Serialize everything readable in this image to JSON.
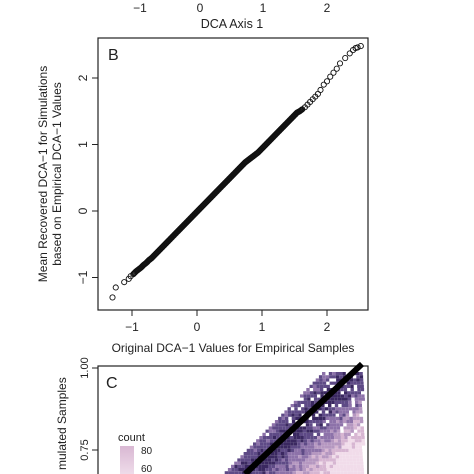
{
  "top_strip": {
    "tick_labels": [
      "−1",
      "0",
      "1",
      "2"
    ],
    "xlabel": "DCA Axis 1"
  },
  "panel_b": {
    "letter": "B"
  },
  "panel_c": {
    "letter": "C",
    "ylabel": "mulated Samples",
    "y_tick_labels": [
      "1.00",
      "0.75"
    ],
    "legend_title": "count",
    "legend_labels": [
      "80",
      "60"
    ],
    "colors": {
      "low": "#e8c9de",
      "mid": "#a884b8",
      "high": "#3a2860",
      "line": "#000000"
    }
  },
  "chart_data": [
    {
      "type": "scatter",
      "panel": "B",
      "xlabel": "Original DCA−1 Values for Empirical Samples",
      "ylabel": "Mean Recovered DCA−1 for Simulations based on Empirical DCA−1 Values",
      "xlim": [
        -1.4,
        2.6
      ],
      "ylim": [
        -1.4,
        2.6
      ],
      "x_ticks": [
        -1,
        0,
        1,
        2
      ],
      "y_ticks": [
        -1,
        0,
        1,
        2
      ],
      "x_tick_labels": [
        "−1",
        "0",
        "1",
        "2"
      ],
      "y_tick_labels": [
        "−1",
        "0",
        "1",
        "2"
      ],
      "grid": false,
      "marker": "open-circle",
      "points": [
        [
          -1.3,
          -1.3
        ],
        [
          -1.25,
          -1.15
        ],
        [
          -1.12,
          -1.07
        ],
        [
          -1.05,
          -1.02
        ],
        [
          -1.02,
          -0.98
        ],
        [
          -0.98,
          -0.95
        ],
        [
          -0.94,
          -0.91
        ],
        [
          -0.9,
          -0.88
        ],
        [
          -0.86,
          -0.85
        ],
        [
          -0.82,
          -0.81
        ],
        [
          -0.78,
          -0.78
        ],
        [
          -0.74,
          -0.74
        ],
        [
          -0.7,
          -0.71
        ],
        [
          -0.66,
          -0.67
        ],
        [
          -0.62,
          -0.63
        ],
        [
          -0.58,
          -0.59
        ],
        [
          -0.54,
          -0.55
        ],
        [
          -0.5,
          -0.51
        ],
        [
          -0.46,
          -0.47
        ],
        [
          -0.42,
          -0.43
        ],
        [
          -0.38,
          -0.39
        ],
        [
          -0.34,
          -0.35
        ],
        [
          -0.3,
          -0.31
        ],
        [
          -0.26,
          -0.27
        ],
        [
          -0.22,
          -0.23
        ],
        [
          -0.18,
          -0.19
        ],
        [
          -0.14,
          -0.15
        ],
        [
          -0.1,
          -0.11
        ],
        [
          -0.06,
          -0.07
        ],
        [
          -0.02,
          -0.03
        ],
        [
          0.02,
          0.01
        ],
        [
          0.06,
          0.05
        ],
        [
          0.1,
          0.09
        ],
        [
          0.14,
          0.13
        ],
        [
          0.18,
          0.17
        ],
        [
          0.22,
          0.21
        ],
        [
          0.26,
          0.25
        ],
        [
          0.3,
          0.29
        ],
        [
          0.34,
          0.33
        ],
        [
          0.38,
          0.37
        ],
        [
          0.42,
          0.41
        ],
        [
          0.46,
          0.45
        ],
        [
          0.5,
          0.49
        ],
        [
          0.54,
          0.53
        ],
        [
          0.58,
          0.57
        ],
        [
          0.62,
          0.61
        ],
        [
          0.66,
          0.65
        ],
        [
          0.7,
          0.69
        ],
        [
          0.74,
          0.73
        ],
        [
          0.78,
          0.76
        ],
        [
          0.82,
          0.79
        ],
        [
          0.86,
          0.82
        ],
        [
          0.9,
          0.85
        ],
        [
          0.94,
          0.88
        ],
        [
          0.98,
          0.92
        ],
        [
          1.02,
          0.96
        ],
        [
          1.06,
          1.0
        ],
        [
          1.1,
          1.04
        ],
        [
          1.14,
          1.08
        ],
        [
          1.18,
          1.12
        ],
        [
          1.22,
          1.16
        ],
        [
          1.26,
          1.2
        ],
        [
          1.3,
          1.24
        ],
        [
          1.34,
          1.28
        ],
        [
          1.38,
          1.32
        ],
        [
          1.42,
          1.36
        ],
        [
          1.46,
          1.4
        ],
        [
          1.5,
          1.44
        ],
        [
          1.54,
          1.48
        ],
        [
          1.58,
          1.5
        ],
        [
          1.62,
          1.53
        ],
        [
          1.66,
          1.56
        ],
        [
          1.7,
          1.6
        ],
        [
          1.74,
          1.64
        ],
        [
          1.78,
          1.68
        ],
        [
          1.82,
          1.72
        ],
        [
          1.86,
          1.76
        ],
        [
          1.9,
          1.82
        ],
        [
          1.95,
          1.9
        ],
        [
          2.0,
          1.95
        ],
        [
          2.05,
          2.02
        ],
        [
          2.1,
          2.08
        ],
        [
          2.15,
          2.14
        ],
        [
          2.2,
          2.22
        ],
        [
          2.28,
          2.3
        ],
        [
          2.35,
          2.37
        ],
        [
          2.4,
          2.42
        ],
        [
          2.44,
          2.45
        ],
        [
          2.47,
          2.46
        ],
        [
          2.52,
          2.48
        ]
      ]
    },
    {
      "type": "heatmap",
      "panel": "C",
      "ylabel": "mulated Samples",
      "y_ticks": [
        1.0,
        0.75
      ],
      "y_tick_labels": [
        "1.00",
        "0.75"
      ],
      "legend_title": "count",
      "color_scale_labels": [
        "80",
        "60"
      ],
      "trend_line": true
    }
  ]
}
